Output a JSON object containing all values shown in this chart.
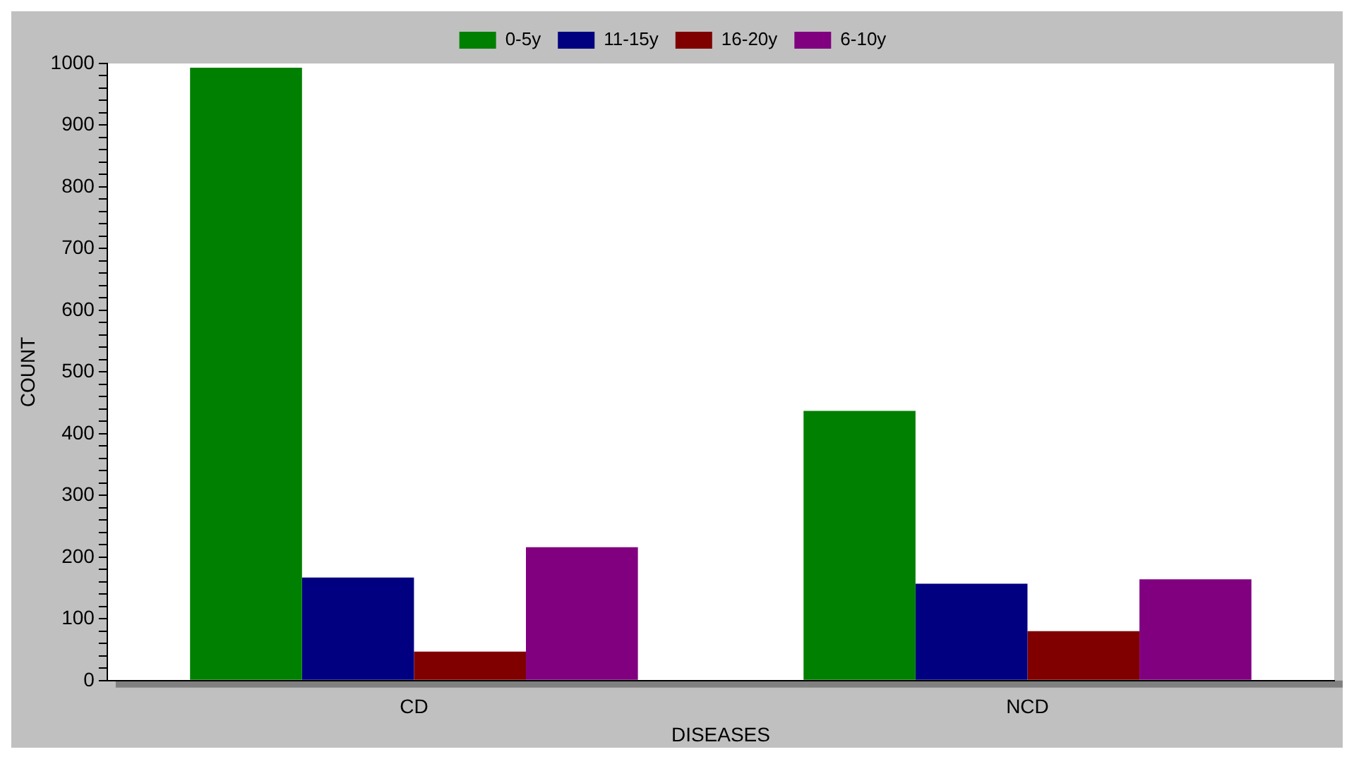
{
  "chart_data": {
    "type": "bar",
    "xlabel": "DISEASES",
    "ylabel": "COUNT",
    "categories": [
      "CD",
      "NCD"
    ],
    "series": [
      {
        "name": "0-5y",
        "color": "#008000",
        "values": [
          993,
          437
        ]
      },
      {
        "name": "11-15y",
        "color": "#000080",
        "values": [
          167,
          157
        ]
      },
      {
        "name": "16-20y",
        "color": "#800000",
        "values": [
          47,
          80
        ]
      },
      {
        "name": "6-10y",
        "color": "#800080",
        "values": [
          216,
          164
        ]
      }
    ],
    "ylim": [
      0,
      1000
    ],
    "yticks": [
      0,
      {
        "value": 20,
        "label": null
      },
      {
        "value": 40,
        "label": null
      },
      {
        "value": 60,
        "label": null
      },
      {
        "value": 80,
        "label": null
      },
      100,
      {
        "value": 120,
        "label": null
      },
      {
        "value": 140,
        "label": null
      },
      {
        "value": 160,
        "label": null
      },
      {
        "value": 180,
        "label": null
      },
      200,
      {
        "value": 220,
        "label": null
      },
      {
        "value": 240,
        "label": null
      },
      {
        "value": 260,
        "label": null
      },
      {
        "value": 280,
        "label": null
      },
      300,
      {
        "value": 320,
        "label": null
      },
      {
        "value": 340,
        "label": null
      },
      {
        "value": 360,
        "label": null
      },
      {
        "value": 380,
        "label": null
      },
      400,
      {
        "value": 420,
        "label": null
      },
      {
        "value": 440,
        "label": null
      },
      {
        "value": 460,
        "label": null
      },
      {
        "value": 480,
        "label": null
      },
      500,
      {
        "value": 520,
        "label": null
      },
      {
        "value": 540,
        "label": null
      },
      {
        "value": 560,
        "label": null
      },
      {
        "value": 580,
        "label": null
      },
      600,
      {
        "value": 620,
        "label": null
      },
      {
        "value": 640,
        "label": null
      },
      {
        "value": 660,
        "label": null
      },
      {
        "value": 680,
        "label": null
      },
      700,
      {
        "value": 720,
        "label": null
      },
      {
        "value": 740,
        "label": null
      },
      {
        "value": 760,
        "label": null
      },
      {
        "value": 780,
        "label": null
      },
      800,
      {
        "value": 820,
        "label": null
      },
      {
        "value": 840,
        "label": null
      },
      {
        "value": 860,
        "label": null
      },
      {
        "value": 880,
        "label": null
      },
      900,
      {
        "value": 920,
        "label": null
      },
      {
        "value": 940,
        "label": null
      },
      {
        "value": 960,
        "label": null
      },
      {
        "value": 980,
        "label": null
      },
      1000
    ],
    "grid": false,
    "legend": "top"
  }
}
